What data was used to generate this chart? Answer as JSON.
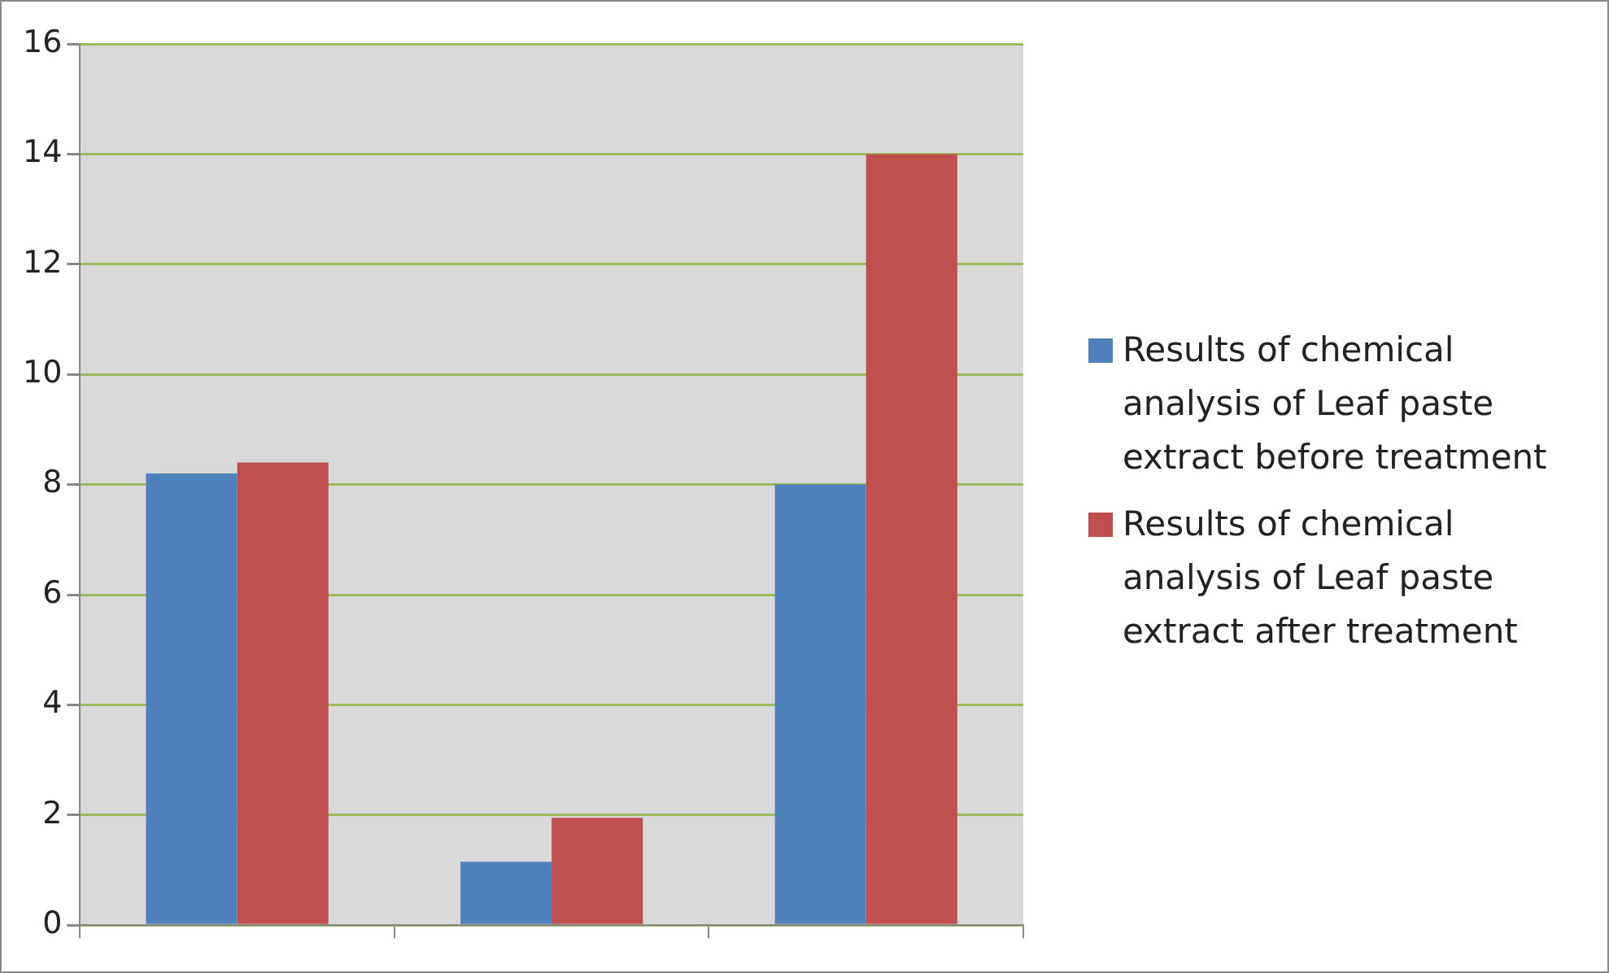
{
  "chart_data": {
    "type": "bar",
    "categories": [
      null,
      null,
      null
    ],
    "series": [
      {
        "name": "Results of chemical analysis of Leaf paste extract before treatment",
        "color": "#4f81bd",
        "values": [
          8.2,
          1.15,
          8.0
        ]
      },
      {
        "name": "Results of chemical analysis of Leaf paste extract after treatment",
        "color": "#c0504d",
        "values": [
          8.4,
          1.95,
          14.0
        ]
      }
    ],
    "ylim": [
      0,
      16
    ],
    "yticks": [
      0,
      2,
      4,
      6,
      8,
      10,
      12,
      14,
      16
    ],
    "grid": "y",
    "legend": "right"
  }
}
